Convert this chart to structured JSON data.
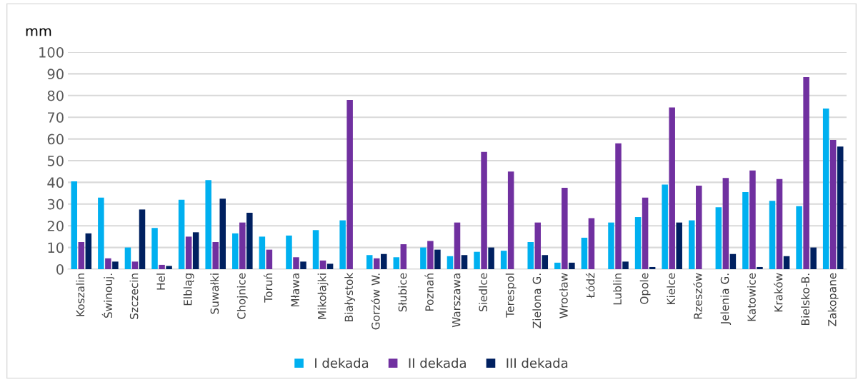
{
  "chart_data": {
    "type": "bar",
    "ylabel": "mm",
    "categories": [
      "Koszalin",
      "Świnouj.",
      "Szczecin",
      "Hel",
      "Elbląg",
      "Suwałki",
      "Chojnice",
      "Toruń",
      "Mława",
      "Mikołajki",
      "Białystok",
      "Gorzów W.",
      "Słubice",
      "Poznań",
      "Warszawa",
      "Siedlce",
      "Terespol",
      "Zielona G.",
      "Wrocław",
      "Łódź",
      "Lublin",
      "Opole",
      "Kielce",
      "Rzeszów",
      "Jelenia G.",
      "Katowice",
      "Kraków",
      "Bielsko-B.",
      "Zakopane"
    ],
    "series": [
      {
        "name": "I dekada",
        "color": "#00b0f0",
        "values": [
          40.5,
          33,
          10,
          19,
          32,
          41,
          16.5,
          15,
          15.5,
          18,
          22.5,
          6.5,
          5.5,
          10,
          6,
          8,
          8.5,
          12.5,
          3,
          14.5,
          21.5,
          24,
          39,
          22.5,
          28.5,
          35.5,
          31.5,
          29,
          74
        ]
      },
      {
        "name": "II dekada",
        "color": "#7030a0",
        "values": [
          12.5,
          5,
          3.5,
          2,
          15,
          12.5,
          21.5,
          9,
          5.5,
          4,
          78,
          5,
          11.5,
          13,
          21.5,
          54,
          45,
          21.5,
          37.5,
          23.5,
          58,
          33,
          74.5,
          38.5,
          42,
          45.5,
          41.5,
          88.5,
          59.5
        ]
      },
      {
        "name": "III dekada",
        "color": "#002060",
        "values": [
          16.5,
          3.5,
          27.5,
          1.5,
          17,
          32.5,
          26,
          null,
          3.5,
          2.5,
          null,
          7,
          null,
          9,
          6.5,
          10,
          null,
          6.5,
          3,
          null,
          3.5,
          1,
          21.5,
          null,
          7,
          1,
          6,
          10,
          56.5
        ]
      }
    ],
    "ylim": [
      0,
      100
    ],
    "yticks": [
      0,
      10,
      20,
      30,
      40,
      50,
      60,
      70,
      80,
      90,
      100
    ],
    "grid": "y",
    "legend": "bottom"
  }
}
